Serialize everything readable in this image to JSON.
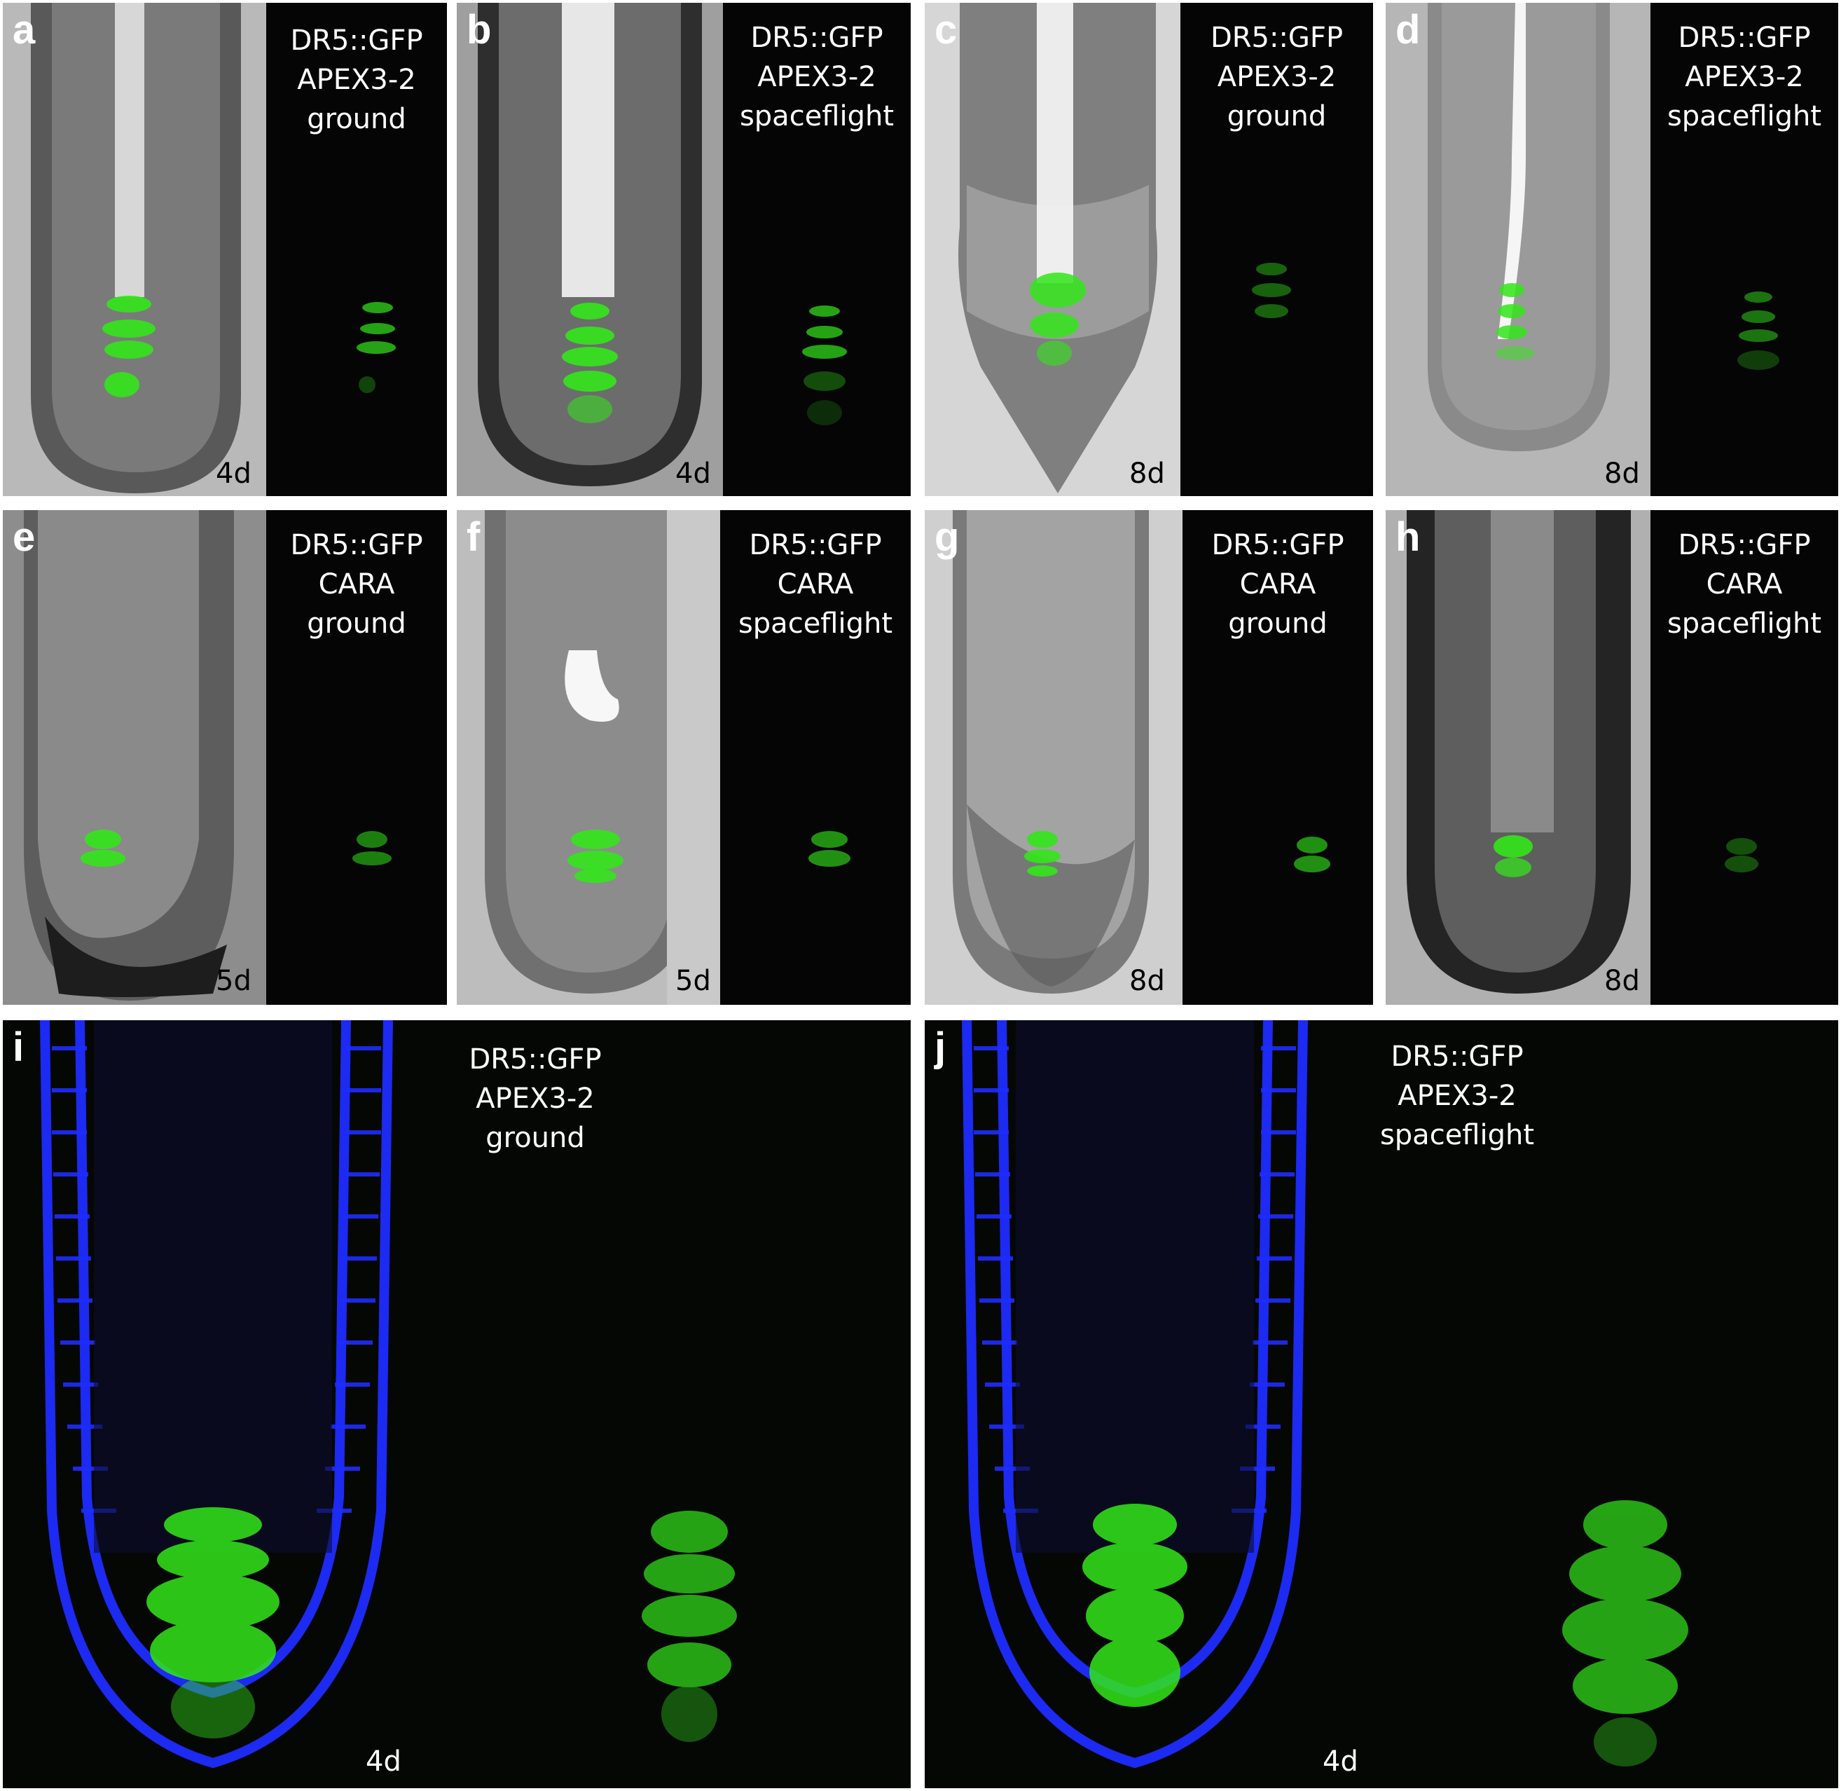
{
  "panels": [
    {
      "letter": "a",
      "label": [
        "DR5::GFP",
        "APEX3-2",
        "ground"
      ],
      "day": "4d"
    },
    {
      "letter": "b",
      "label": [
        "DR5::GFP",
        "APEX3-2",
        "spaceflight"
      ],
      "day": "4d"
    },
    {
      "letter": "c",
      "label": [
        "DR5::GFP",
        "APEX3-2",
        "ground"
      ],
      "day": "8d"
    },
    {
      "letter": "d",
      "label": [
        "DR5::GFP",
        "APEX3-2",
        "spaceflight"
      ],
      "day": "8d"
    },
    {
      "letter": "e",
      "label": [
        "DR5::GFP",
        "CARA",
        "ground"
      ],
      "day": "5d"
    },
    {
      "letter": "f",
      "label": [
        "DR5::GFP",
        "CARA",
        "spaceflight"
      ],
      "day": "5d"
    },
    {
      "letter": "g",
      "label": [
        "DR5::GFP",
        "CARA",
        "ground"
      ],
      "day": "8d"
    },
    {
      "letter": "h",
      "label": [
        "DR5::GFP",
        "CARA",
        "spaceflight"
      ],
      "day": "8d"
    },
    {
      "letter": "i",
      "label": [
        "DR5::GFP",
        "APEX3-2",
        "ground"
      ],
      "day": "4d"
    },
    {
      "letter": "j",
      "label": [
        "DR5::GFP",
        "APEX3-2",
        "spaceflight"
      ],
      "day": "4d"
    }
  ],
  "colors": {
    "background": "#ffffff",
    "gfp_green": "#33e61a",
    "cell_wall_blue": "#1e2cff",
    "dark_panel": "#050505"
  }
}
